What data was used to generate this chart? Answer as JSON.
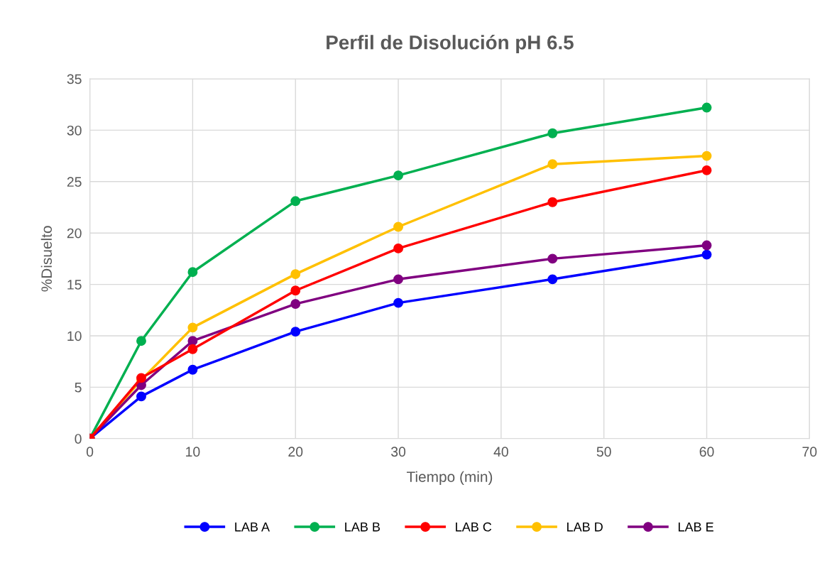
{
  "chart_data": {
    "type": "line",
    "title": "Perfil de Disolución pH 6.5",
    "xlabel": "Tiempo (min)",
    "ylabel": "%Disuelto",
    "x": [
      0,
      5,
      10,
      20,
      30,
      45,
      60
    ],
    "series": [
      {
        "name": "LAB A",
        "color": "#0000ff",
        "values": [
          0,
          4.1,
          6.7,
          10.4,
          13.2,
          15.5,
          17.9
        ]
      },
      {
        "name": "LAB B",
        "color": "#00b050",
        "values": [
          0,
          9.5,
          16.2,
          23.1,
          25.6,
          29.7,
          32.2
        ]
      },
      {
        "name": "LAB C",
        "color": "#ff0000",
        "values": [
          0,
          5.9,
          8.7,
          14.4,
          18.5,
          23.0,
          26.1
        ]
      },
      {
        "name": "LAB D",
        "color": "#ffc000",
        "values": [
          0,
          5.7,
          10.8,
          16.0,
          20.6,
          26.7,
          27.5
        ]
      },
      {
        "name": "LAB E",
        "color": "#800080",
        "values": [
          0,
          5.2,
          9.5,
          13.1,
          15.5,
          17.5,
          18.8
        ]
      }
    ],
    "xlim": [
      0,
      70
    ],
    "xticks": [
      0,
      10,
      20,
      30,
      40,
      50,
      60,
      70
    ],
    "ylim": [
      0,
      35
    ],
    "yticks": [
      0,
      5,
      10,
      15,
      20,
      25,
      30,
      35
    ],
    "grid": true,
    "legend": "bottom",
    "marker": "circle",
    "line_style": "solid"
  }
}
